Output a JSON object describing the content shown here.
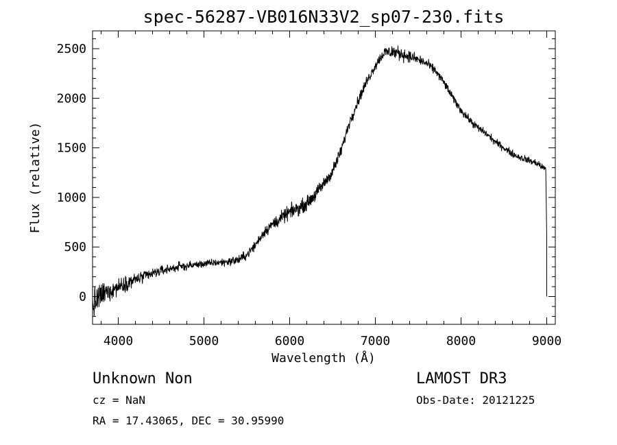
{
  "chart_data": {
    "type": "line",
    "title": "spec-56287-VB016N33V2_sp07-230.fits",
    "xlabel": "Wavelength (Å)",
    "ylabel": "Flux (relative)",
    "xlim": [
      3700,
      9100
    ],
    "ylim": [
      -280,
      2680
    ],
    "xticks": [
      4000,
      5000,
      6000,
      7000,
      8000,
      9000
    ],
    "yticks": [
      0,
      500,
      1000,
      1500,
      2000,
      2500
    ],
    "xtick_labels": [
      "4000",
      "5000",
      "6000",
      "7000",
      "8000",
      "9000"
    ],
    "ytick_labels": [
      "0",
      "500",
      "1000",
      "1500",
      "2000",
      "2500"
    ],
    "series": [
      {
        "name": "flux",
        "noise_scale": [
          [
            3700,
            170
          ],
          [
            4000,
            90
          ],
          [
            4500,
            55
          ],
          [
            5000,
            40
          ],
          [
            5600,
            55
          ],
          [
            6000,
            80
          ],
          [
            6500,
            70
          ],
          [
            7000,
            55
          ],
          [
            7200,
            80
          ],
          [
            7600,
            50
          ],
          [
            8500,
            40
          ],
          [
            9000,
            40
          ]
        ],
        "x": [
          3700,
          3750,
          3800,
          3900,
          4000,
          4100,
          4200,
          4300,
          4400,
          4500,
          4600,
          4700,
          4800,
          4900,
          5000,
          5100,
          5200,
          5300,
          5400,
          5500,
          5600,
          5700,
          5800,
          5900,
          6000,
          6100,
          6200,
          6300,
          6400,
          6500,
          6600,
          6700,
          6800,
          6900,
          7000,
          7100,
          7200,
          7300,
          7400,
          7500,
          7600,
          7700,
          7800,
          7900,
          8000,
          8100,
          8200,
          8300,
          8400,
          8500,
          8600,
          8700,
          8800,
          8900,
          8950,
          8990,
          9000,
          9000
        ],
        "y": [
          -100,
          -40,
          10,
          60,
          100,
          140,
          170,
          200,
          230,
          260,
          280,
          300,
          310,
          320,
          330,
          340,
          345,
          355,
          370,
          420,
          520,
          650,
          730,
          790,
          850,
          890,
          940,
          1030,
          1140,
          1260,
          1470,
          1760,
          1980,
          2170,
          2330,
          2460,
          2470,
          2450,
          2420,
          2390,
          2350,
          2280,
          2160,
          2010,
          1880,
          1780,
          1700,
          1640,
          1560,
          1500,
          1440,
          1400,
          1370,
          1340,
          1300,
          1200,
          600,
          0
        ]
      }
    ]
  }
}
